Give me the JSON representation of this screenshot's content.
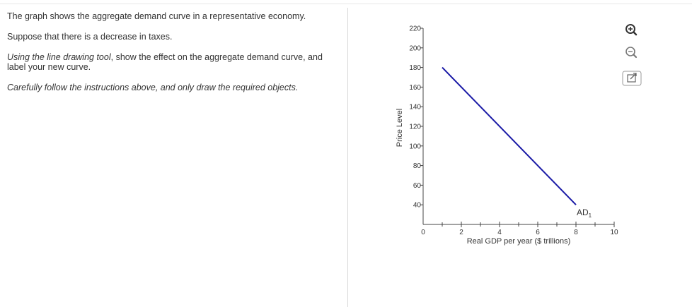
{
  "question": {
    "line1": "The graph shows the aggregate demand curve in a representative economy.",
    "line2": "Suppose that there is a decrease in taxes.",
    "line3_prefix": "Using the line drawing tool",
    "line3_rest": ", show the effect on the aggregate demand curve, and label your new curve.",
    "line4": "Carefully follow the instructions above, and only draw the required objects."
  },
  "tools": {
    "zoom_in_icon": "zoom-in-icon",
    "zoom_out_icon": "zoom-out-icon",
    "popout_icon": "popout-icon"
  },
  "chart_data": {
    "type": "line",
    "xlabel": "Real GDP per year ($ trillions)",
    "ylabel": "Price Level",
    "xlim": [
      0,
      10
    ],
    "ylim": [
      20,
      220
    ],
    "x_ticks": [
      2,
      4,
      6,
      8,
      10
    ],
    "x_tick_labels": [
      "2",
      "4",
      "6",
      "8",
      "10"
    ],
    "x_minor_ticks": [
      1,
      3,
      5,
      7,
      9
    ],
    "origin_label": "0",
    "y_ticks": [
      40,
      60,
      80,
      100,
      120,
      140,
      160,
      180,
      200,
      220
    ],
    "y_tick_labels": [
      "40",
      "60",
      "80",
      "100",
      "120",
      "140",
      "160",
      "180",
      "200",
      "220"
    ],
    "series": [
      {
        "name": "AD1",
        "color": "#1a1aa6",
        "points": [
          [
            1,
            180
          ],
          [
            8,
            40
          ]
        ]
      }
    ],
    "curve_label": {
      "text": "AD",
      "subscript": "1"
    }
  }
}
